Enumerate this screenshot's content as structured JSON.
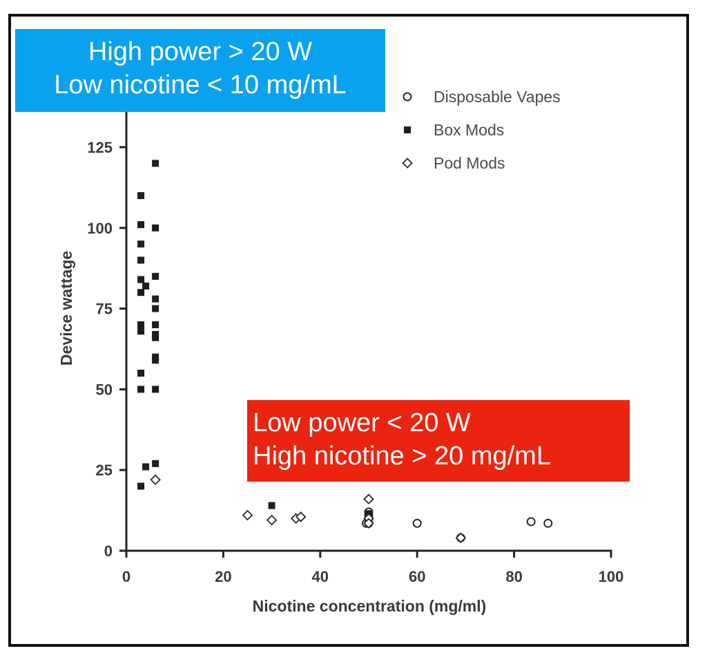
{
  "chart_data": {
    "type": "scatter",
    "xlabel": "Nicotine concentration (mg/ml)",
    "ylabel": "Device  wattage",
    "xlim": [
      0,
      100
    ],
    "ylim": [
      0,
      135
    ],
    "xticks": [
      0,
      20,
      40,
      60,
      80,
      100
    ],
    "yticks": [
      0,
      25,
      50,
      75,
      100,
      125
    ],
    "legend_position": "top-right",
    "series": [
      {
        "name": "Disposable Vapes",
        "marker": "circle-open",
        "points": [
          [
            49.5,
            8.5
          ],
          [
            50,
            8.5
          ],
          [
            50,
            10
          ],
          [
            50,
            11
          ],
          [
            50,
            12
          ],
          [
            60,
            8.5
          ],
          [
            69,
            4
          ],
          [
            83.5,
            9
          ],
          [
            87,
            8.5
          ]
        ]
      },
      {
        "name": "Box Mods",
        "marker": "square-filled",
        "points": [
          [
            3,
            20
          ],
          [
            3,
            50
          ],
          [
            3,
            55
          ],
          [
            3,
            68
          ],
          [
            3,
            70
          ],
          [
            3,
            80
          ],
          [
            3,
            84
          ],
          [
            3,
            90
          ],
          [
            3,
            95
          ],
          [
            3,
            101
          ],
          [
            3,
            110
          ],
          [
            4,
            26
          ],
          [
            4,
            82
          ],
          [
            6,
            27
          ],
          [
            6,
            50
          ],
          [
            6,
            59
          ],
          [
            6,
            60
          ],
          [
            6,
            66
          ],
          [
            6,
            67
          ],
          [
            6,
            70
          ],
          [
            6,
            75
          ],
          [
            6,
            78
          ],
          [
            6,
            85
          ],
          [
            6,
            100
          ],
          [
            6,
            120
          ],
          [
            30,
            14
          ],
          [
            50,
            10
          ],
          [
            50,
            11.5
          ]
        ]
      },
      {
        "name": "Pod Mods",
        "marker": "diamond-open",
        "points": [
          [
            6,
            22
          ],
          [
            25,
            11
          ],
          [
            30,
            9.5
          ],
          [
            35,
            10
          ],
          [
            36,
            10.5
          ],
          [
            50,
            16
          ],
          [
            50,
            10
          ],
          [
            50,
            8.5
          ],
          [
            69,
            4
          ]
        ]
      }
    ]
  },
  "callouts": {
    "high_power": {
      "line1": "High power > 20 W",
      "line2": "Low nicotine < 10 mg/mL",
      "color": "#0aa2ee"
    },
    "low_power": {
      "line1": "Low power < 20 W",
      "line2": "High nicotine > 20 mg/mL",
      "color": "#ea2410"
    }
  }
}
